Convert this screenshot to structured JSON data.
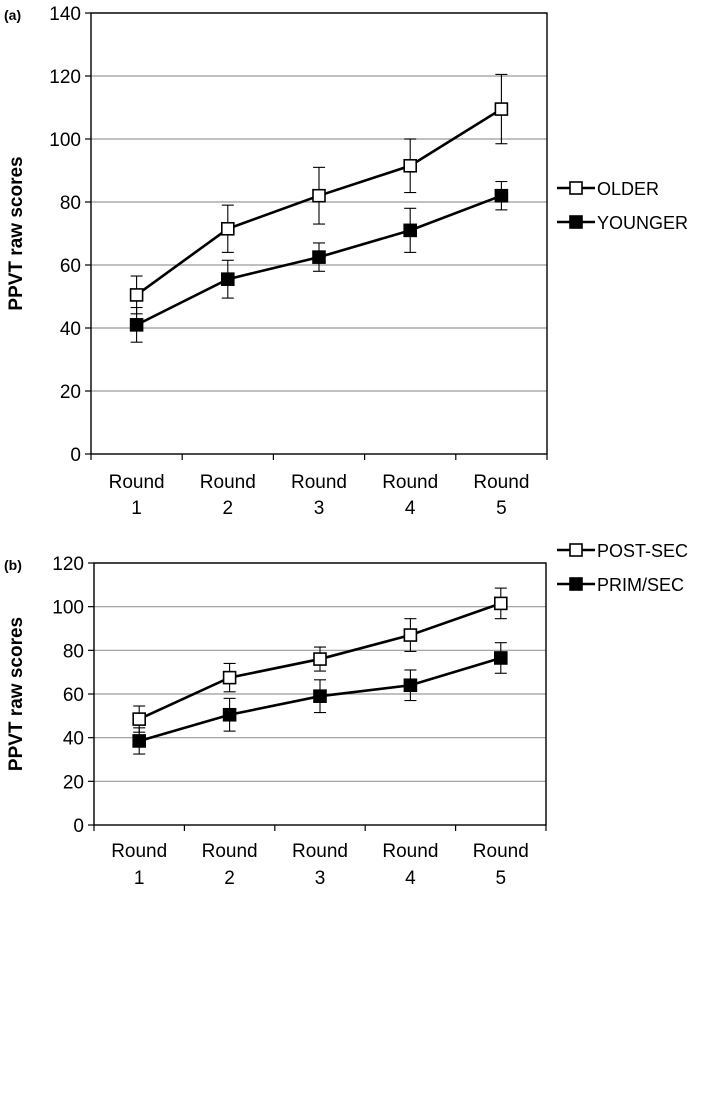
{
  "chart_data": [
    {
      "panel": "(a)",
      "type": "line",
      "ylabel": "PPVT raw scores",
      "xlabel": "",
      "categories": [
        [
          "Round",
          "1"
        ],
        [
          "Round",
          "2"
        ],
        [
          "Round",
          "3"
        ],
        [
          "Round",
          "4"
        ],
        [
          "Round",
          "5"
        ]
      ],
      "ylim": [
        0,
        140
      ],
      "yticks": [
        0,
        20,
        40,
        60,
        80,
        100,
        120,
        140
      ],
      "grid": "horizontal",
      "legend_position": "right",
      "series": [
        {
          "name": "OLDER",
          "marker": "open-square",
          "values": [
            50.5,
            71.5,
            82,
            91.5,
            109.5
          ],
          "errors": [
            6,
            7.5,
            9,
            8.5,
            11
          ]
        },
        {
          "name": "YOUNGER",
          "marker": "filled-square",
          "values": [
            41,
            55.5,
            62.5,
            71,
            82
          ],
          "errors": [
            5.5,
            6,
            4.5,
            7,
            4.5
          ]
        }
      ]
    },
    {
      "panel": "(b)",
      "type": "line",
      "ylabel": "PPVT raw scores",
      "xlabel": "",
      "categories": [
        [
          "Round",
          "1"
        ],
        [
          "Round",
          "2"
        ],
        [
          "Round",
          "3"
        ],
        [
          "Round",
          "4"
        ],
        [
          "Round",
          "5"
        ]
      ],
      "ylim": [
        0,
        120
      ],
      "yticks": [
        0,
        20,
        40,
        60,
        80,
        100,
        120
      ],
      "grid": "horizontal",
      "legend_position": "right",
      "series": [
        {
          "name": "POST-SEC",
          "marker": "open-square",
          "values": [
            48.5,
            67.5,
            76,
            87,
            101.5
          ],
          "errors": [
            6,
            6.5,
            5.5,
            7.5,
            7
          ]
        },
        {
          "name": "PRIM/SEC",
          "marker": "filled-square",
          "values": [
            38.5,
            50.5,
            59,
            64,
            76.5
          ],
          "errors": [
            6,
            7.5,
            7.5,
            7,
            7
          ]
        }
      ]
    }
  ]
}
